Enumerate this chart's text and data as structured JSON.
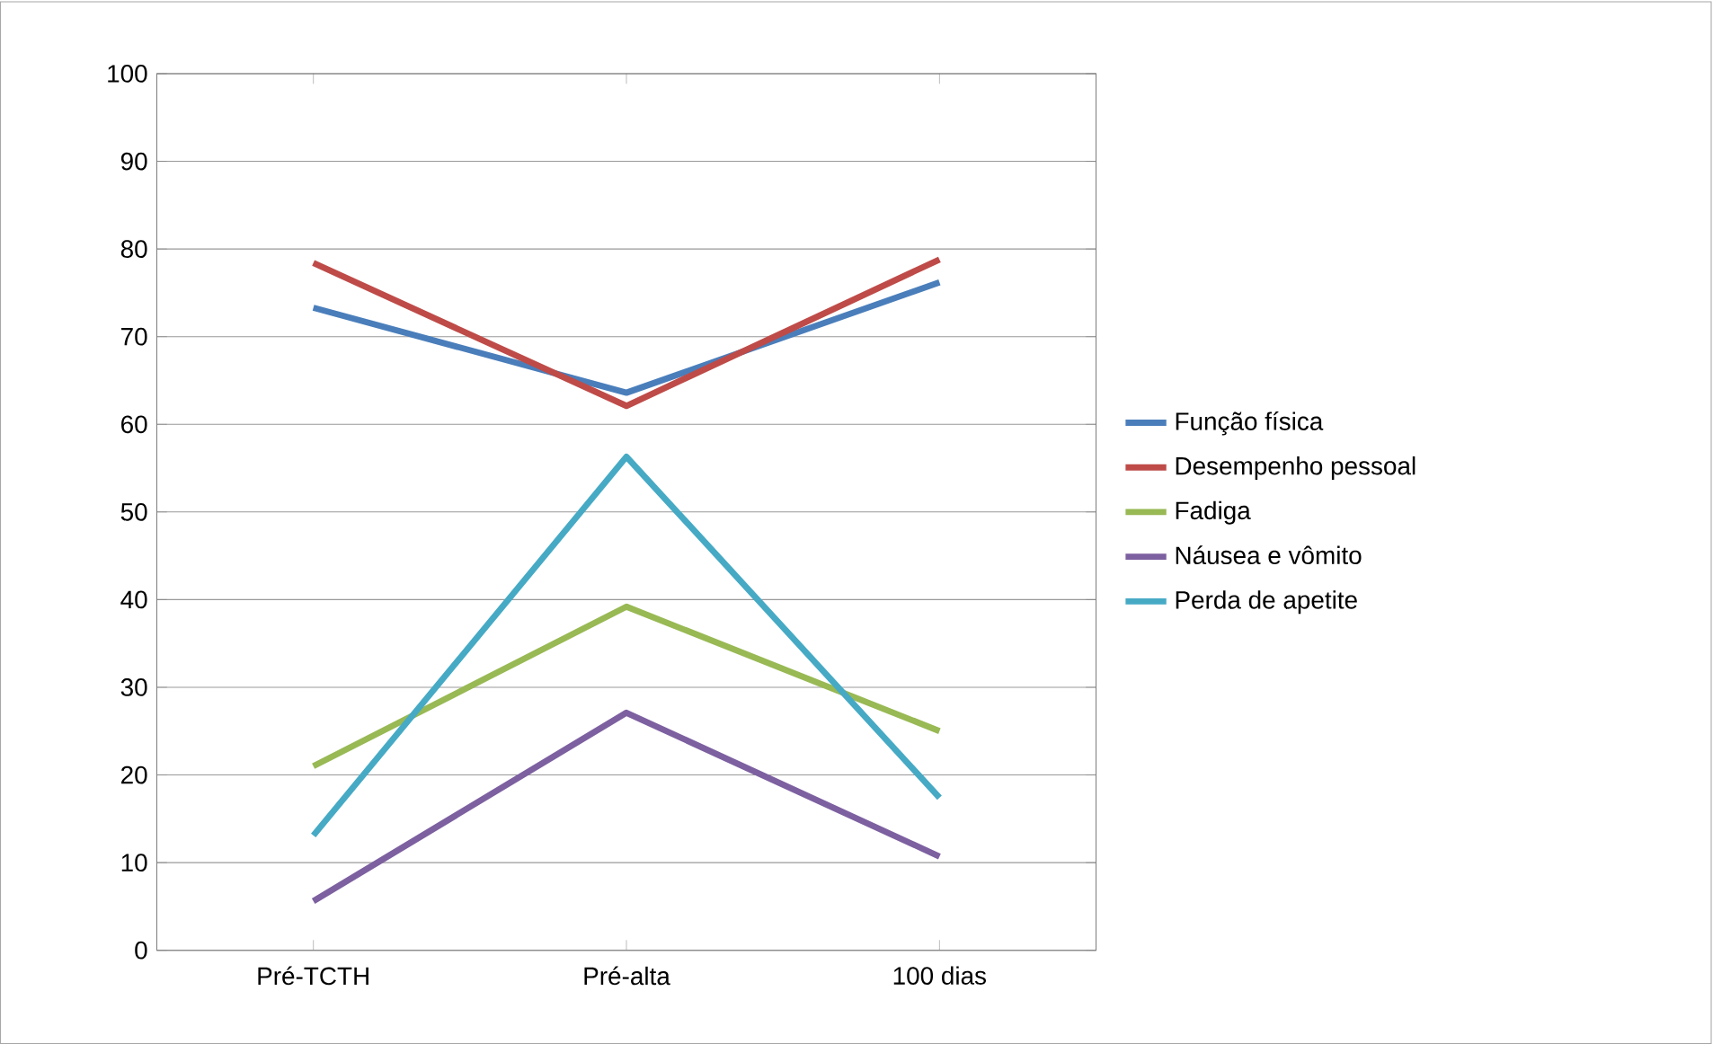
{
  "chart_data": {
    "type": "line",
    "categories": [
      "Pré-TCTH",
      "Pré-alta",
      "100 dias"
    ],
    "series": [
      {
        "name": "Função física",
        "color": "#4a7ebb",
        "values": [
          73.3,
          63.6,
          76.2
        ]
      },
      {
        "name": "Desempenho pessoal",
        "color": "#be4b48",
        "values": [
          78.4,
          62.1,
          78.8
        ]
      },
      {
        "name": "Fadiga",
        "color": "#98b954",
        "values": [
          21.0,
          39.2,
          25.0
        ]
      },
      {
        "name": "Náusea e vômito",
        "color": "#7d60a0",
        "values": [
          5.6,
          27.1,
          10.7
        ]
      },
      {
        "name": "Perda de apetite",
        "color": "#46aac5",
        "values": [
          13.1,
          56.3,
          17.4
        ]
      }
    ],
    "ylim": [
      0,
      100
    ],
    "yticks": [
      0,
      10,
      20,
      30,
      40,
      50,
      60,
      70,
      80,
      90,
      100
    ],
    "grid": "y",
    "legend": "right",
    "marker": "none",
    "line_style": "solid"
  }
}
